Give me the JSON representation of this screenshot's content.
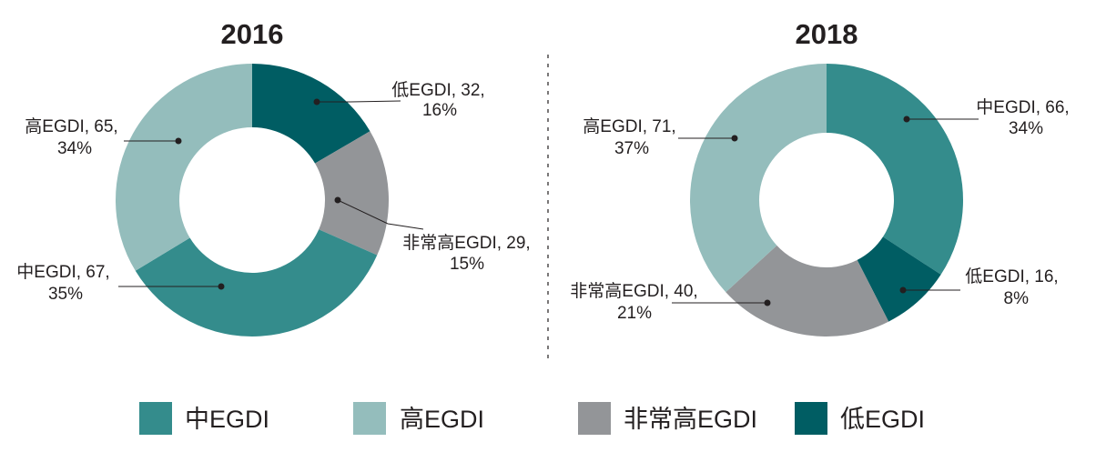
{
  "chart_data": [
    {
      "type": "pie",
      "title": "2016",
      "categories": [
        "中EGDI",
        "高EGDI",
        "非常高EGDI",
        "低EGDI"
      ],
      "values": [
        67,
        65,
        29,
        32
      ],
      "percents": [
        "35%",
        "34%",
        "15%",
        "16%"
      ],
      "labels": [
        {
          "line1": "中EGDI, 67,",
          "line2": "35%"
        },
        {
          "line1": "高EGDI, 65,",
          "line2": "34%"
        },
        {
          "line1": "非常高EGDI, 29,",
          "line2": "15%"
        },
        {
          "line1": "低EGDI, 32,",
          "line2": "16%"
        }
      ]
    },
    {
      "type": "pie",
      "title": "2018",
      "categories": [
        "中EGDI",
        "高EGDI",
        "非常高EGDI",
        "低EGDI"
      ],
      "values": [
        66,
        71,
        40,
        16
      ],
      "percents": [
        "34%",
        "37%",
        "21%",
        "8%"
      ],
      "labels": [
        {
          "line1": "中EGDI, 66,",
          "line2": "34%"
        },
        {
          "line1": "高EGDI, 71,",
          "line2": "37%"
        },
        {
          "line1": "非常高EGDI, 40,",
          "line2": "21%"
        },
        {
          "line1": "低EGDI, 16,",
          "line2": "8%"
        }
      ]
    }
  ],
  "legend": [
    {
      "label": "中EGDI",
      "color": "#348c8c"
    },
    {
      "label": "高EGDI",
      "color": "#94bdbc"
    },
    {
      "label": "非常高EGDI",
      "color": "#939598"
    },
    {
      "label": "低EGDI",
      "color": "#005d63"
    }
  ]
}
